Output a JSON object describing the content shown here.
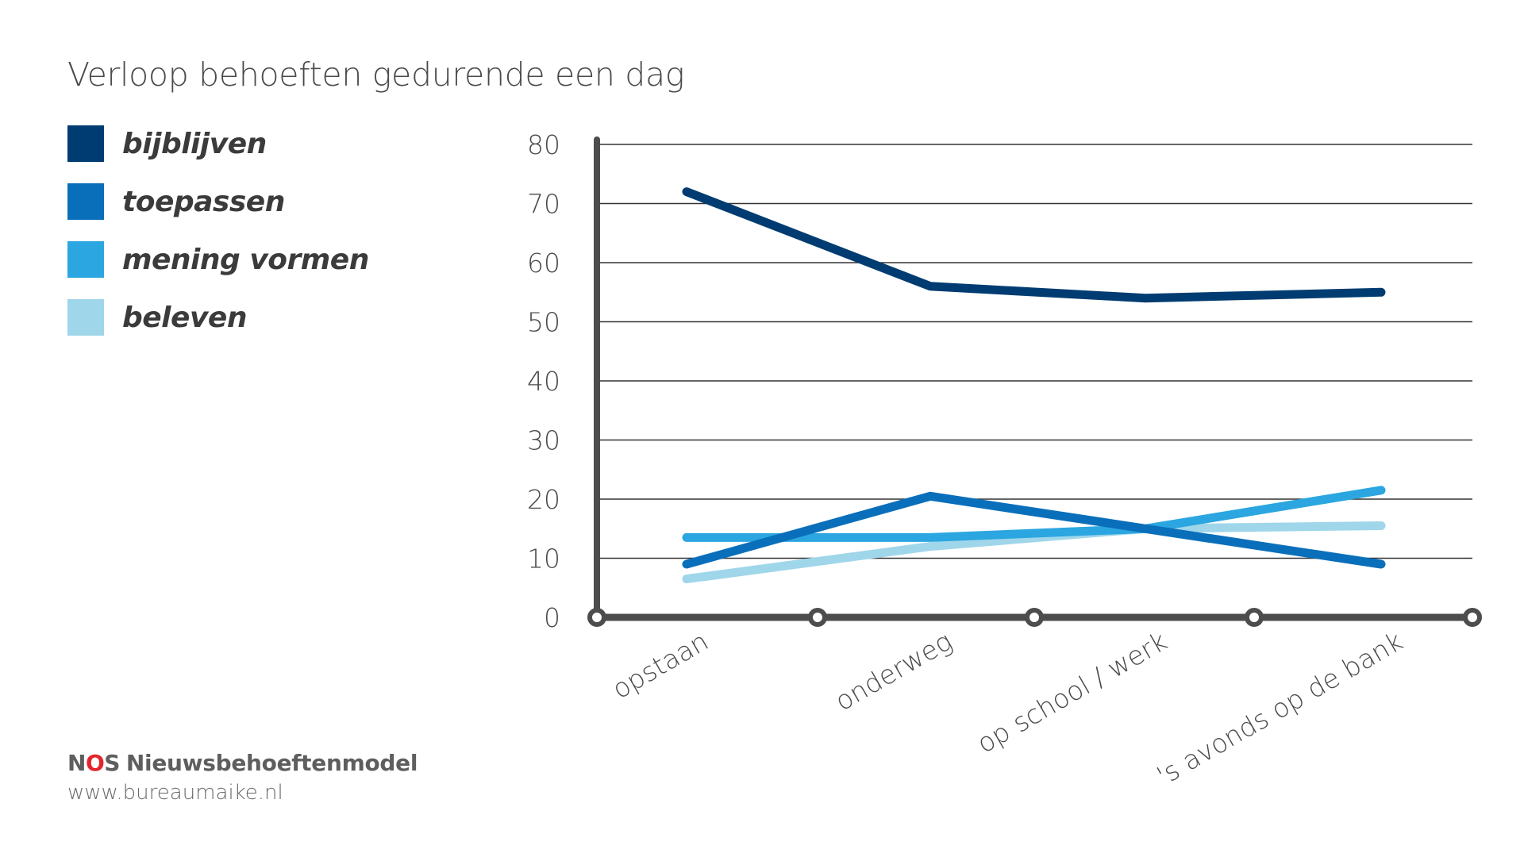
{
  "title": "Verloop behoeften gedurende een dag",
  "legend": [
    {
      "label": "bijblijven",
      "color": "#003c71"
    },
    {
      "label": "toepassen",
      "color": "#0a6fbb"
    },
    {
      "label": "mening vormen",
      "color": "#2ba6e0"
    },
    {
      "label": "beleven",
      "color": "#9fd6ea"
    }
  ],
  "footer": {
    "nos_prefix": "N",
    "nos_o": "O",
    "nos_suffix": "S",
    "brand": "Nieuwsbehoeftenmodel",
    "site": "www.bureaumaike.nl"
  },
  "colors": {
    "axis": "#4d4d4d",
    "grid": "#333333",
    "text": "#4a4a4a",
    "nos_red": "#e3242b"
  },
  "chart_data": {
    "type": "line",
    "title": "Verloop behoeften gedurende een dag",
    "categories": [
      "opstaan",
      "onderweg",
      "op school / werk",
      "'s avonds op de bank"
    ],
    "ylim": [
      0,
      80
    ],
    "yticks": [
      0,
      10,
      20,
      30,
      40,
      50,
      60,
      70,
      80
    ],
    "grid": true,
    "legend_position": "left",
    "series": [
      {
        "name": "bijblijven",
        "color": "#003c71",
        "values": [
          72,
          56,
          54,
          55
        ]
      },
      {
        "name": "toepassen",
        "color": "#0a6fbb",
        "values": [
          9,
          20.5,
          15,
          9
        ]
      },
      {
        "name": "mening vormen",
        "color": "#2ba6e0",
        "values": [
          13.5,
          13.5,
          15,
          21.5
        ]
      },
      {
        "name": "beleven",
        "color": "#9fd6ea",
        "values": [
          6.5,
          12,
          15,
          15.5
        ]
      }
    ]
  }
}
